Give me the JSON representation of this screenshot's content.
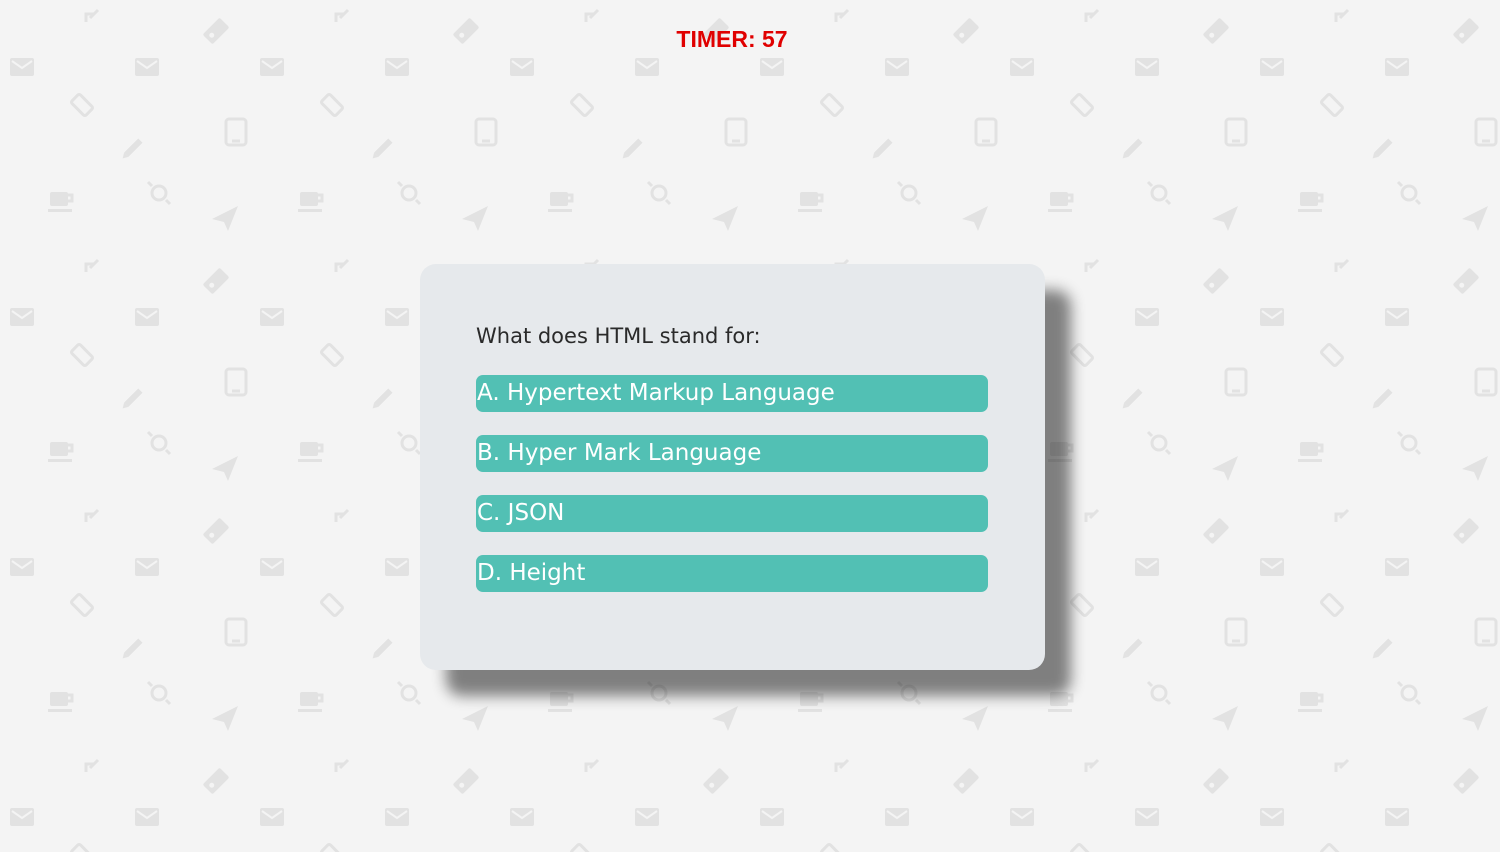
{
  "timer": {
    "text": "TIMER: 57"
  },
  "quiz": {
    "question": "What does HTML stand for:",
    "answers": [
      {
        "label": "A. Hypertext Markup Language"
      },
      {
        "label": "B. Hyper Mark Language"
      },
      {
        "label": "C. JSON"
      },
      {
        "label": "D. Height"
      }
    ]
  },
  "colors": {
    "background": "#f4f4f4",
    "pattern_icon": "#e2e2e2",
    "timer": "#e00000",
    "card": "#e6e9ec",
    "answer_button": "#52c0b4",
    "answer_text": "#ffffff"
  },
  "background_icons": [
    "expand-icon",
    "tag-icon",
    "mail-icon",
    "pencil-icon",
    "tablet-icon",
    "coffee-icon",
    "gear-icon",
    "send-icon"
  ]
}
